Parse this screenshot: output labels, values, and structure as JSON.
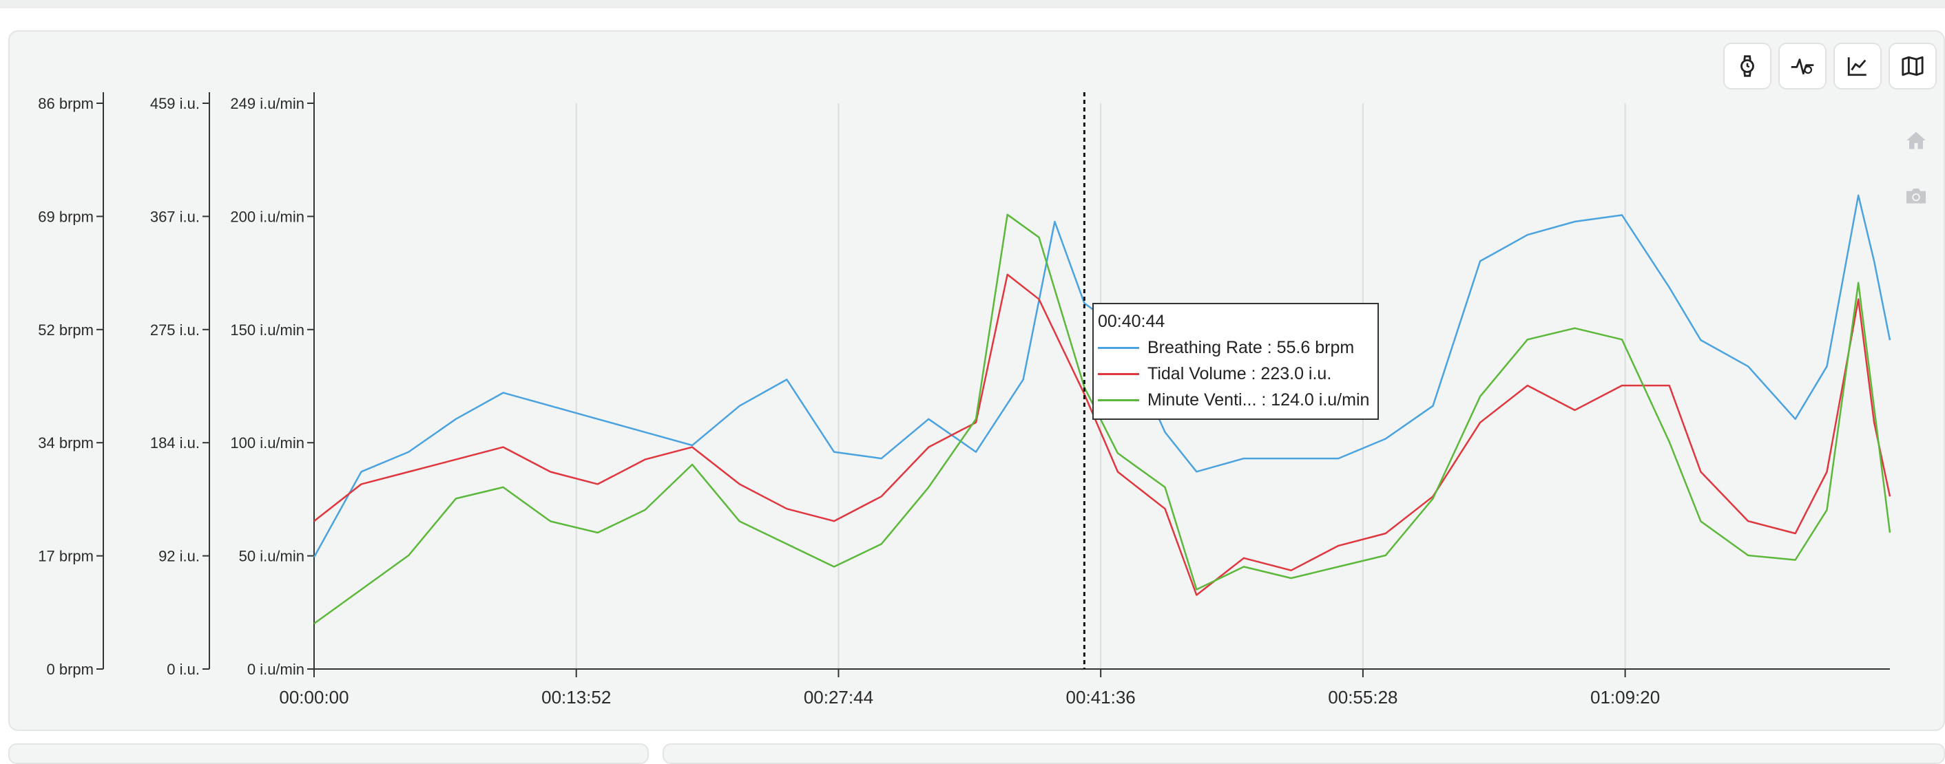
{
  "toolbar": {
    "buttons": [
      {
        "icon": "watch-icon",
        "label": "Device"
      },
      {
        "icon": "activity-icon",
        "label": "Activity"
      },
      {
        "icon": "line-chart-icon",
        "label": "Chart"
      },
      {
        "icon": "map-icon",
        "label": "Map"
      }
    ]
  },
  "side_icons": [
    "home-icon",
    "camera-icon"
  ],
  "tooltip": {
    "time": "00:40:44",
    "rows": [
      {
        "label": "Breathing Rate : 55.6 brpm",
        "color": "#4aa3df"
      },
      {
        "label": "Tidal Volume : 223.0 i.u.",
        "color": "#e0373f"
      },
      {
        "label": "Minute Venti... : 124.0 i.u/min",
        "color": "#5cb83a"
      }
    ]
  },
  "chart_data": {
    "type": "line",
    "x_ticks": [
      "00:00:00",
      "00:13:52",
      "00:27:44",
      "00:41:36",
      "00:55:28",
      "01:09:20"
    ],
    "x_tick_seconds": [
      0,
      832,
      1664,
      2496,
      3328,
      4160
    ],
    "x_range_seconds": [
      0,
      5000
    ],
    "hover_seconds": 2444,
    "grid": "vertical",
    "axes": [
      {
        "id": "br",
        "ticks": [
          "0 brpm",
          "17 brpm",
          "34 brpm",
          "52 brpm",
          "69 brpm",
          "86 brpm"
        ],
        "range": [
          0,
          86
        ]
      },
      {
        "id": "tv",
        "ticks": [
          "0 i.u.",
          "92 i.u.",
          "184 i.u.",
          "275 i.u.",
          "367 i.u.",
          "459 i.u."
        ],
        "range": [
          0,
          459
        ]
      },
      {
        "id": "mv",
        "ticks": [
          "0 i.u/min",
          "50 i.u/min",
          "100 i.u/min",
          "150 i.u/min",
          "200 i.u/min",
          "249 i.u/min"
        ],
        "range": [
          0,
          249
        ]
      }
    ],
    "series": [
      {
        "name": "Breathing Rate",
        "axis": "br",
        "color": "#4aa3df",
        "x": [
          0,
          150,
          300,
          450,
          600,
          750,
          900,
          1050,
          1200,
          1350,
          1500,
          1650,
          1800,
          1950,
          2100,
          2250,
          2350,
          2444,
          2550,
          2700,
          2800,
          2950,
          3100,
          3250,
          3400,
          3550,
          3700,
          3850,
          4000,
          4150,
          4300,
          4400,
          4550,
          4700,
          4800,
          4900,
          4950,
          5000
        ],
        "y": [
          17,
          30,
          33,
          38,
          42,
          40,
          38,
          36,
          34,
          40,
          44,
          33,
          32,
          38,
          33,
          44,
          68,
          55.6,
          52,
          36,
          30,
          32,
          32,
          32,
          35,
          40,
          62,
          66,
          68,
          69,
          58,
          50,
          46,
          38,
          46,
          72,
          62,
          50
        ]
      },
      {
        "name": "Tidal Volume",
        "axis": "tv",
        "color": "#e0373f",
        "x": [
          0,
          150,
          300,
          450,
          600,
          750,
          900,
          1050,
          1200,
          1350,
          1500,
          1650,
          1800,
          1950,
          2100,
          2200,
          2300,
          2444,
          2550,
          2700,
          2800,
          2950,
          3100,
          3250,
          3400,
          3550,
          3700,
          3850,
          4000,
          4150,
          4300,
          4400,
          4550,
          4700,
          4800,
          4900,
          4950,
          5000
        ],
        "y": [
          120,
          150,
          160,
          170,
          180,
          160,
          150,
          170,
          180,
          150,
          130,
          120,
          140,
          180,
          200,
          320,
          300,
          223,
          160,
          130,
          60,
          90,
          80,
          100,
          110,
          140,
          200,
          230,
          210,
          230,
          230,
          160,
          120,
          110,
          160,
          300,
          200,
          140
        ]
      },
      {
        "name": "Minute Ventilation",
        "axis": "mv",
        "color": "#5cb83a",
        "x": [
          0,
          150,
          300,
          450,
          600,
          750,
          900,
          1050,
          1200,
          1350,
          1500,
          1650,
          1800,
          1950,
          2100,
          2200,
          2300,
          2444,
          2550,
          2700,
          2800,
          2950,
          3100,
          3250,
          3400,
          3550,
          3700,
          3850,
          4000,
          4150,
          4300,
          4400,
          4550,
          4700,
          4800,
          4900,
          4950,
          5000
        ],
        "y": [
          20,
          35,
          50,
          75,
          80,
          65,
          60,
          70,
          90,
          65,
          55,
          45,
          55,
          80,
          110,
          200,
          190,
          124,
          95,
          80,
          35,
          45,
          40,
          45,
          50,
          75,
          120,
          145,
          150,
          145,
          100,
          65,
          50,
          48,
          70,
          170,
          115,
          60
        ]
      }
    ]
  }
}
